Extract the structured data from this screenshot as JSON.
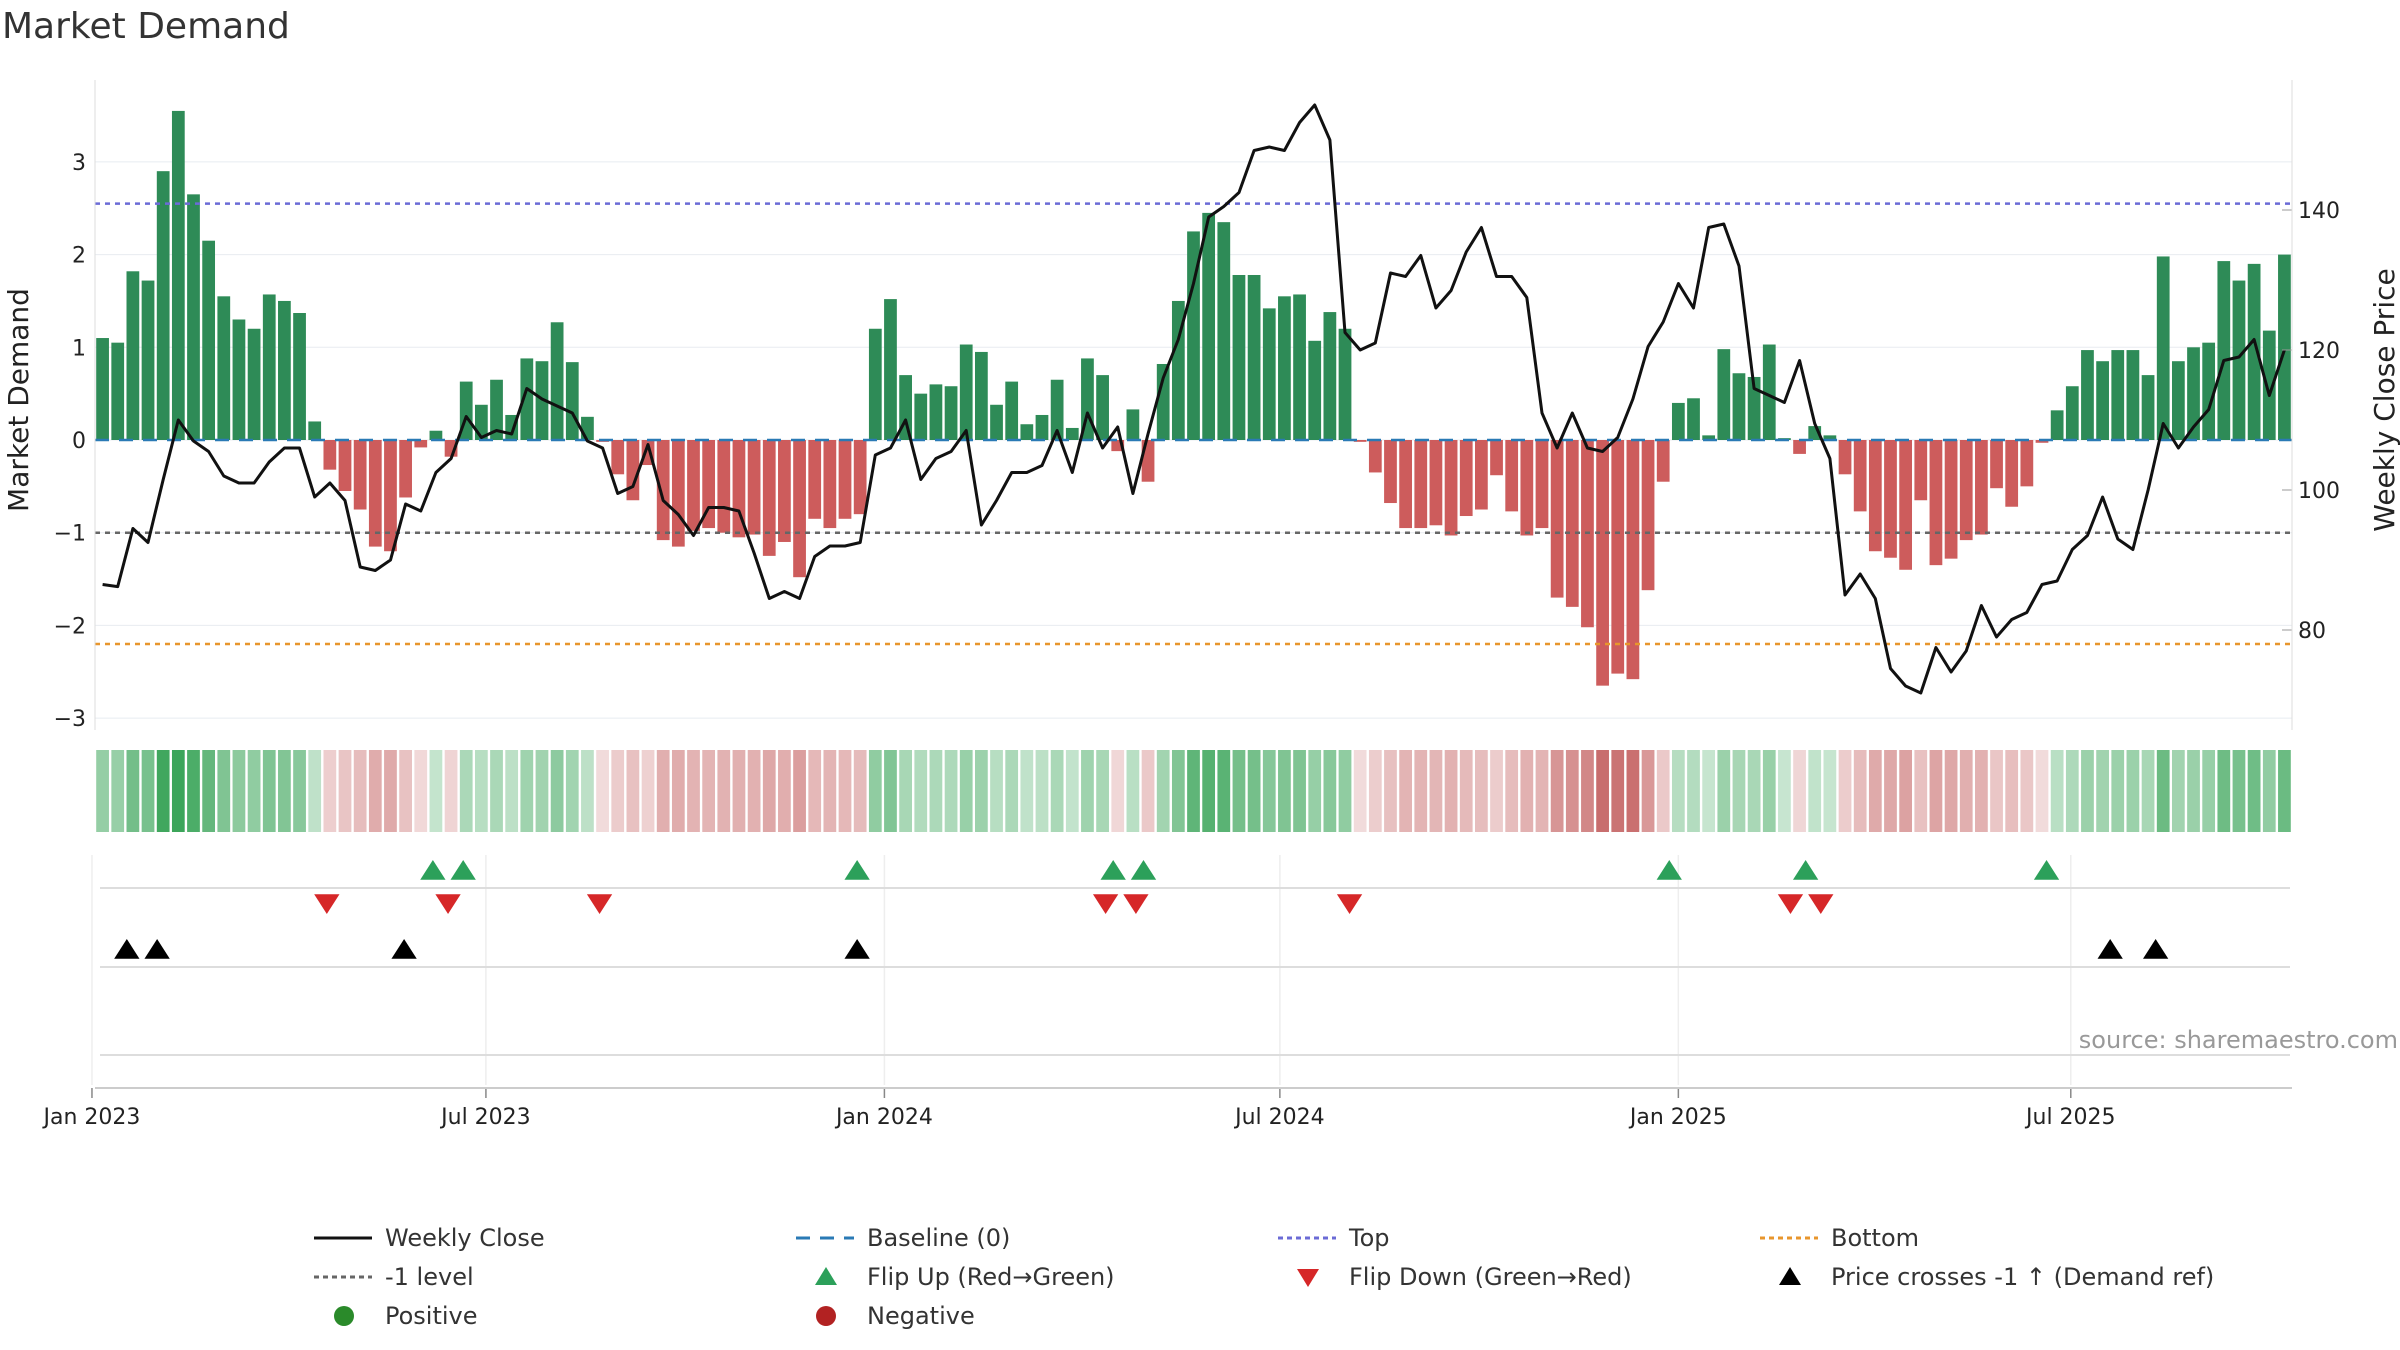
{
  "chart_data": {
    "type": "bar",
    "title": "Market Demand",
    "ylabel": "Market Demand",
    "y2label": "Weekly Close Price",
    "ylim": [
      -3.3,
      3.9
    ],
    "y2lim": [
      64,
      158
    ],
    "yticks": [
      3,
      2,
      1,
      0,
      -1,
      -2,
      -3
    ],
    "ytick_labels": [
      "3",
      "2",
      "1",
      "0",
      "−1",
      "−2",
      "−3"
    ],
    "y2ticks": [
      140,
      120,
      100,
      80
    ],
    "y2tick_labels": [
      "140",
      "120",
      "100",
      "80"
    ],
    "start_date": "2023-01-06",
    "weeks": 144,
    "x_tick_labels": [
      "Jan 2023",
      "Jul 2023",
      "Jan 2024",
      "Jul 2024",
      "Jan 2025",
      "Jul 2025"
    ],
    "x_tick_weeks": [
      -0.7,
      25.3,
      51.6,
      77.7,
      104.0,
      129.9
    ],
    "top_level": 2.55,
    "bottom_level": -2.2,
    "minus1_level": -1.0,
    "source": "source: sharemaestro.com",
    "demand": [
      1.1,
      1.05,
      1.82,
      1.72,
      2.9,
      3.55,
      2.65,
      2.15,
      1.55,
      1.3,
      1.2,
      1.57,
      1.5,
      1.37,
      0.2,
      -0.32,
      -0.55,
      -0.75,
      -1.15,
      -1.2,
      -0.62,
      -0.08,
      0.1,
      -0.18,
      0.63,
      0.38,
      0.65,
      0.27,
      0.88,
      0.85,
      1.27,
      0.84,
      0.25,
      -0.02,
      -0.37,
      -0.65,
      -0.27,
      -1.08,
      -1.15,
      -0.98,
      -0.95,
      -1.0,
      -1.05,
      -1.02,
      -1.25,
      -1.1,
      -1.48,
      -0.85,
      -0.95,
      -0.85,
      -0.8,
      1.2,
      1.52,
      0.7,
      0.5,
      0.6,
      0.58,
      1.03,
      0.95,
      0.38,
      0.63,
      0.17,
      0.27,
      0.65,
      0.13,
      0.88,
      0.7,
      -0.12,
      0.33,
      -0.45,
      0.82,
      1.5,
      2.25,
      2.45,
      2.35,
      1.78,
      1.78,
      1.42,
      1.55,
      1.57,
      1.07,
      1.38,
      1.2,
      -0.02,
      -0.35,
      -0.68,
      -0.95,
      -0.95,
      -0.92,
      -1.03,
      -0.82,
      -0.75,
      -0.38,
      -0.77,
      -1.03,
      -0.95,
      -1.7,
      -1.8,
      -2.02,
      -2.65,
      -2.52,
      -2.58,
      -1.62,
      -0.45,
      0.4,
      0.45,
      0.05,
      0.98,
      0.72,
      0.68,
      1.03,
      0.02,
      -0.15,
      0.15,
      0.05,
      -0.37,
      -0.77,
      -1.2,
      -1.27,
      -1.4,
      -0.65,
      -1.35,
      -1.28,
      -1.08,
      -1.02,
      -0.52,
      -0.72,
      -0.5,
      -0.03,
      0.32,
      0.58,
      0.97,
      0.85,
      0.97,
      0.97,
      0.7,
      1.98,
      0.85,
      1.0,
      1.05,
      1.93,
      1.72,
      1.9,
      1.18,
      2.0
    ],
    "close": [
      86.5,
      86.2,
      94.5,
      92.5,
      101.5,
      110.0,
      107.0,
      105.5,
      102.0,
      101.0,
      101.0,
      104.0,
      106.0,
      106.0,
      99.0,
      101.0,
      98.5,
      89.0,
      88.5,
      90.0,
      98.0,
      97.0,
      102.5,
      104.5,
      110.5,
      107.5,
      108.5,
      108.0,
      114.5,
      113.0,
      112.0,
      111.0,
      107.0,
      106.0,
      99.5,
      100.5,
      106.5,
      98.5,
      96.5,
      93.5,
      97.5,
      97.5,
      97.0,
      91.0,
      84.5,
      85.5,
      84.5,
      90.5,
      92.0,
      92.0,
      92.5,
      105.0,
      106.0,
      110.0,
      101.5,
      104.5,
      105.5,
      108.5,
      95.0,
      98.5,
      102.5,
      102.5,
      103.5,
      108.5,
      102.5,
      111.0,
      106.0,
      109.0,
      99.5,
      108.0,
      116.0,
      121.5,
      129.5,
      139.0,
      140.5,
      142.5,
      148.5,
      149.0,
      148.5,
      152.5,
      155.0,
      150.0,
      122.5,
      120.0,
      121.0,
      131.0,
      130.5,
      133.5,
      126.0,
      128.5,
      134.0,
      137.5,
      130.5,
      130.5,
      127.5,
      111.0,
      106.0,
      111.0,
      106.0,
      105.5,
      107.5,
      113.0,
      120.5,
      124.0,
      129.5,
      126.0,
      137.5,
      138.0,
      132.0,
      114.5,
      113.5,
      112.5,
      118.5,
      109.5,
      104.5,
      85.0,
      88.0,
      84.5,
      74.5,
      72.0,
      71.0,
      77.5,
      74.0,
      77.0,
      83.5,
      79.0,
      81.5,
      82.5,
      86.5,
      87.0,
      91.5,
      93.5,
      99.0,
      93.0,
      91.5,
      100.0,
      109.5,
      106.0,
      109.0,
      111.5,
      118.5,
      119.0,
      121.5,
      113.5,
      120.0
    ],
    "flip_up_weeks": [
      21.8,
      23.8,
      49.8,
      66.7,
      68.7,
      103.4,
      112.4,
      128.3
    ],
    "flip_down_weeks": [
      14.8,
      22.8,
      32.8,
      66.2,
      68.2,
      82.3,
      111.4,
      113.4
    ],
    "price_cross_weeks": [
      1.6,
      3.6,
      19.9,
      49.8,
      132.5,
      135.5
    ],
    "legend": [
      {
        "label": "Weekly Close",
        "kind": "line",
        "color": "#111111"
      },
      {
        "label": "Baseline (0)",
        "kind": "dash",
        "color": "#2a7ab5"
      },
      {
        "label": "Top",
        "kind": "dot",
        "color": "#6b6bd6"
      },
      {
        "label": "Bottom",
        "kind": "dot",
        "color": "#e8962c"
      },
      {
        "label": "-1 level",
        "kind": "dot",
        "color": "#666666"
      },
      {
        "label": "Flip Up (Red→Green)",
        "kind": "tri-up",
        "color": "#2ca05a"
      },
      {
        "label": "Flip Down (Green→Red)",
        "kind": "tri-down",
        "color": "#d62728"
      },
      {
        "label": "Price crosses -1 ↑ (Demand ref)",
        "kind": "tri-up",
        "color": "#000000"
      },
      {
        "label": "Positive",
        "kind": "circle",
        "color": "#2a8a2a"
      },
      {
        "label": "Negative",
        "kind": "circle",
        "color": "#b22222"
      }
    ]
  },
  "colors": {
    "positive_bar": "#2e8b57",
    "negative_bar": "#cd5c5c",
    "close_line": "#111111",
    "baseline": "#2a7ab5",
    "top": "#6b6bd6",
    "bottom": "#e8962c",
    "minus1": "#666666"
  }
}
